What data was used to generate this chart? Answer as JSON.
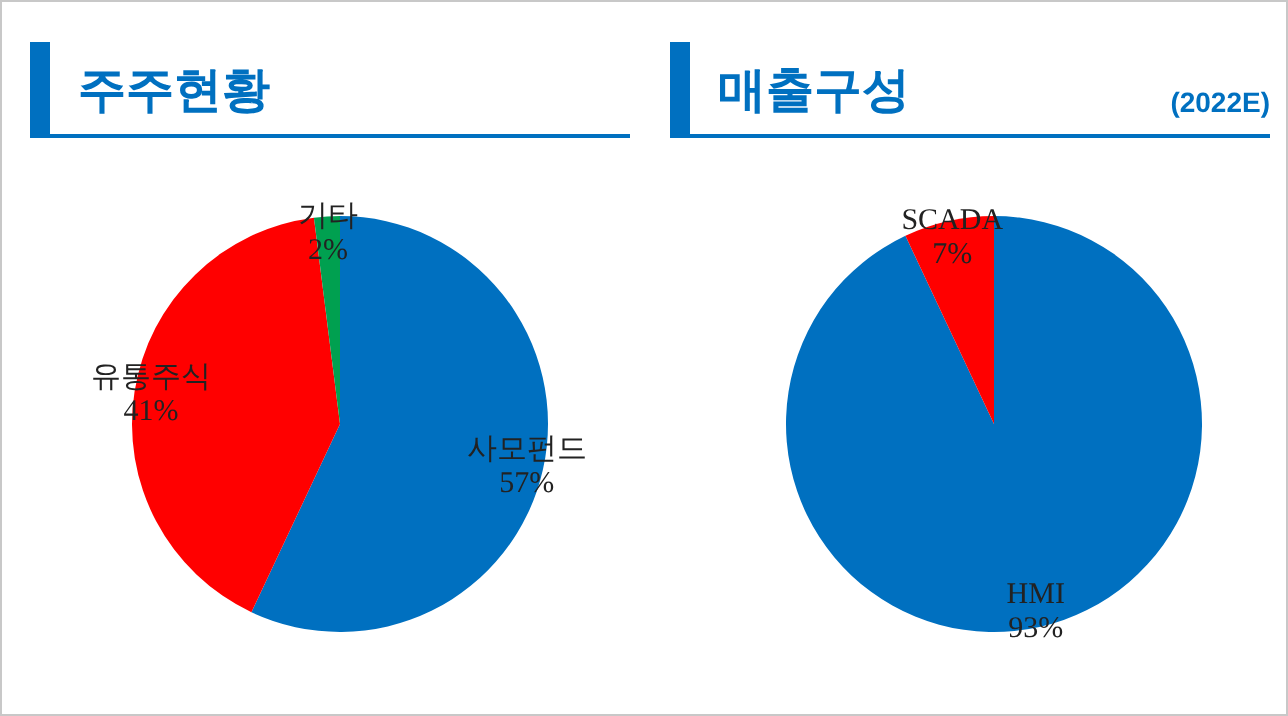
{
  "chart_data": [
    {
      "type": "pie",
      "title": "주주현황",
      "categories": [
        "사모펀드",
        "유통주식",
        "기타"
      ],
      "values": [
        57,
        41,
        2
      ],
      "colors": [
        "#0070c0",
        "#ff0000",
        "#00a050"
      ],
      "value_labels": [
        "57%",
        "41%",
        "2%"
      ],
      "legend": false
    },
    {
      "type": "pie",
      "title": "매출구성",
      "subtitle": "(2022E)",
      "categories": [
        "HMI",
        "SCADA"
      ],
      "values": [
        93,
        7
      ],
      "colors": [
        "#0070c0",
        "#ff0000"
      ],
      "value_labels": [
        "93%",
        "7%"
      ],
      "legend": false
    }
  ]
}
